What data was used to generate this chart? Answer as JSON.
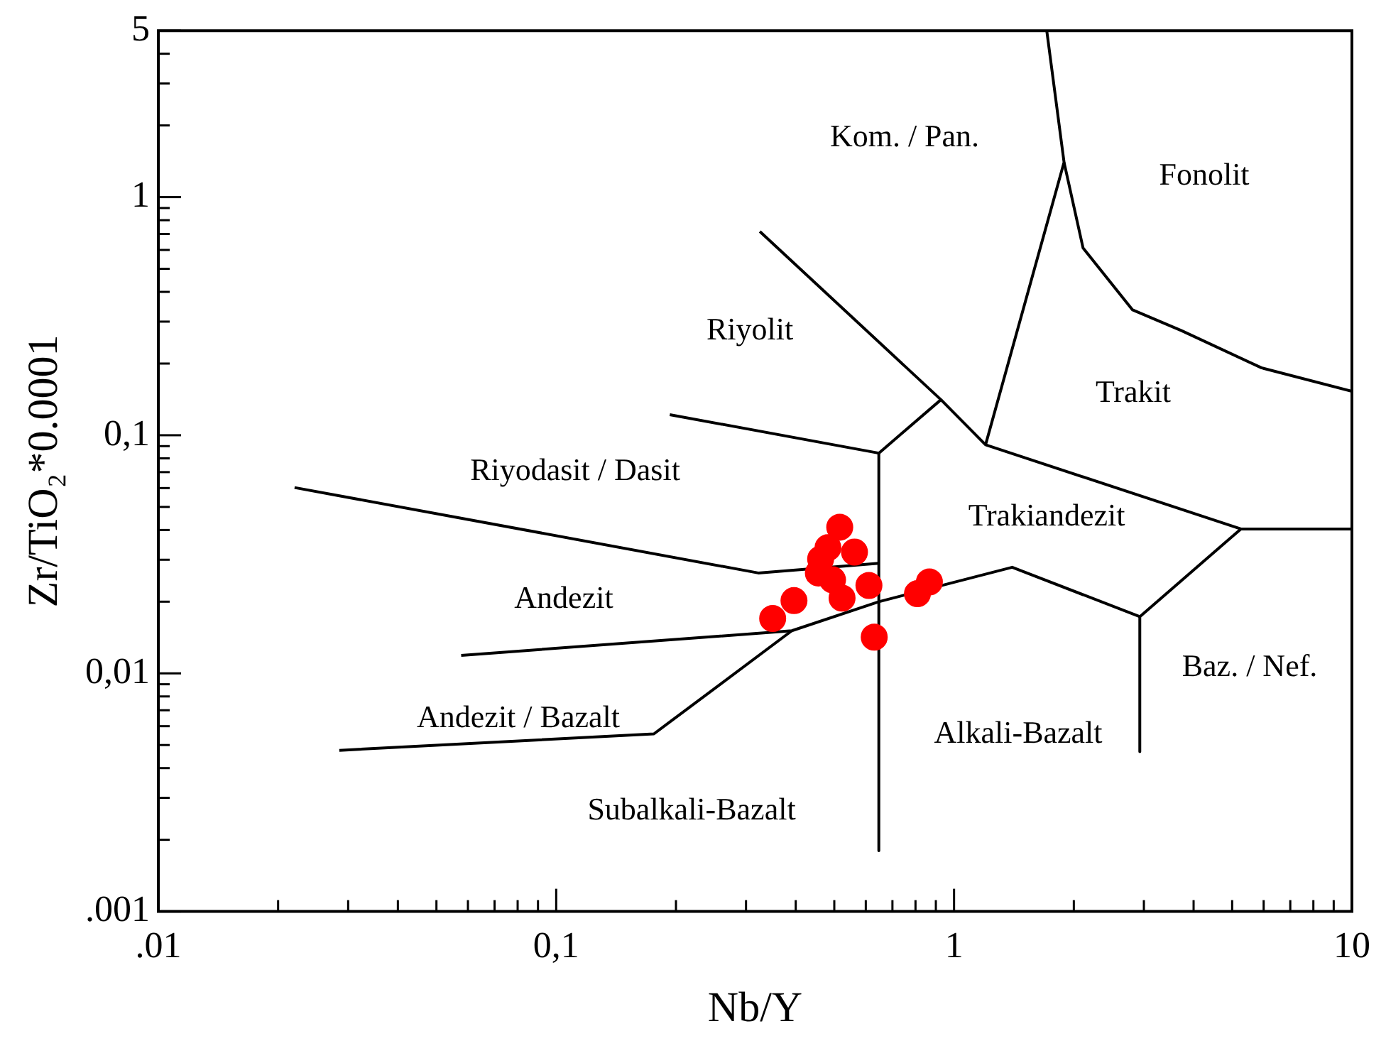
{
  "chart_data": {
    "type": "scatter",
    "xlabel": "Nb/Y",
    "ylabel": "Zr/TiO₂*0.0001",
    "log": "xy",
    "grid": false,
    "legend": false,
    "xlim": [
      0.01,
      10
    ],
    "ylim": [
      0.001,
      5
    ],
    "xticks": [
      {
        "value": 0.01,
        "label": ".01"
      },
      {
        "value": 0.02,
        "label": null
      },
      {
        "value": 0.03,
        "label": null
      },
      {
        "value": 0.04,
        "label": null
      },
      {
        "value": 0.05,
        "label": null
      },
      {
        "value": 0.06,
        "label": null
      },
      {
        "value": 0.07,
        "label": null
      },
      {
        "value": 0.08,
        "label": null
      },
      {
        "value": 0.09,
        "label": null
      },
      {
        "value": 0.1,
        "label": "0,1"
      },
      {
        "value": 0.2,
        "label": null
      },
      {
        "value": 0.3,
        "label": null
      },
      {
        "value": 0.4,
        "label": null
      },
      {
        "value": 0.5,
        "label": null
      },
      {
        "value": 0.6,
        "label": null
      },
      {
        "value": 0.7,
        "label": null
      },
      {
        "value": 0.8,
        "label": null
      },
      {
        "value": 0.9,
        "label": null
      },
      1,
      {
        "value": 2,
        "label": null
      },
      {
        "value": 3,
        "label": null
      },
      {
        "value": 4,
        "label": null
      },
      {
        "value": 5,
        "label": null
      },
      {
        "value": 6,
        "label": null
      },
      {
        "value": 7,
        "label": null
      },
      {
        "value": 8,
        "label": null
      },
      {
        "value": 9,
        "label": null
      },
      10
    ],
    "yticks": [
      {
        "value": 0.001,
        "label": ".001"
      },
      {
        "value": 0.002,
        "label": null
      },
      {
        "value": 0.003,
        "label": null
      },
      {
        "value": 0.004,
        "label": null
      },
      {
        "value": 0.005,
        "label": null
      },
      {
        "value": 0.006,
        "label": null
      },
      {
        "value": 0.007,
        "label": null
      },
      {
        "value": 0.008,
        "label": null
      },
      {
        "value": 0.009,
        "label": null
      },
      {
        "value": 0.01,
        "label": "0,01"
      },
      {
        "value": 0.02,
        "label": null
      },
      {
        "value": 0.03,
        "label": null
      },
      {
        "value": 0.04,
        "label": null
      },
      {
        "value": 0.05,
        "label": null
      },
      {
        "value": 0.06,
        "label": null
      },
      {
        "value": 0.07,
        "label": null
      },
      {
        "value": 0.08,
        "label": null
      },
      {
        "value": 0.09,
        "label": null
      },
      {
        "value": 0.1,
        "label": "0,1"
      },
      {
        "value": 0.2,
        "label": null
      },
      {
        "value": 0.3,
        "label": null
      },
      {
        "value": 0.4,
        "label": null
      },
      {
        "value": 0.5,
        "label": null
      },
      {
        "value": 0.6,
        "label": null
      },
      {
        "value": 0.7,
        "label": null
      },
      {
        "value": 0.8,
        "label": null
      },
      {
        "value": 0.9,
        "label": null
      },
      1,
      {
        "value": 2,
        "label": null
      },
      {
        "value": 3,
        "label": null
      },
      {
        "value": 4,
        "label": null
      },
      5
    ],
    "series": [
      {
        "color": "#ff0000",
        "marker": "circle",
        "x": [
          0.516,
          0.482,
          0.562,
          0.462,
          0.456,
          0.495,
          0.523,
          0.611,
          0.396,
          0.35,
          0.63,
          0.867,
          0.809
        ],
        "values": [
          0.0411,
          0.0337,
          0.0323,
          0.0302,
          0.0264,
          0.0247,
          0.0207,
          0.0234,
          0.0202,
          0.017,
          0.0142,
          0.0242,
          0.0216
        ]
      },
      {
        "type": "line",
        "color": "#000000",
        "marker": "none",
        "x": [
          0.022,
          0.322,
          0.647
        ],
        "values": [
          0.0603,
          0.0264,
          0.029
        ]
      },
      {
        "type": "line",
        "color": "#000000",
        "marker": "none",
        "x": [
          0.193,
          0.647,
          0.927
        ],
        "values": [
          0.122,
          0.0841,
          0.141
        ]
      },
      {
        "type": "line",
        "color": "#000000",
        "marker": "none",
        "x": [
          0.647,
          0.647
        ],
        "values": [
          0.0841,
          0.0018
        ]
      },
      {
        "type": "line",
        "color": "#000000",
        "marker": "none",
        "x": [
          0.325,
          0.927,
          1.2,
          5.26,
          10
        ],
        "values": [
          0.717,
          0.141,
          0.0912,
          0.0404,
          0.0404
        ]
      },
      {
        "type": "line",
        "color": "#000000",
        "marker": "none",
        "x": [
          1.2,
          1.89,
          1.71
        ],
        "values": [
          0.0912,
          1.4,
          5
        ]
      },
      {
        "type": "line",
        "color": "#000000",
        "marker": "none",
        "x": [
          1.89,
          2.11,
          2.81,
          3.73,
          5.92,
          10
        ],
        "values": [
          1.4,
          0.611,
          0.336,
          0.275,
          0.192,
          0.153
        ]
      },
      {
        "type": "line",
        "color": "#000000",
        "marker": "none",
        "x": [
          5.26,
          2.93,
          2.93
        ],
        "values": [
          0.0404,
          0.0173,
          0.00469
        ]
      },
      {
        "type": "line",
        "color": "#000000",
        "marker": "none",
        "x": [
          0.0577,
          0.391,
          0.647,
          1.4,
          2.93
        ],
        "values": [
          0.0119,
          0.0151,
          0.02,
          0.0279,
          0.0173
        ]
      },
      {
        "type": "line",
        "color": "#000000",
        "marker": "none",
        "x": [
          0.0285,
          0.176,
          0.391
        ],
        "values": [
          0.00475,
          0.00557,
          0.0151
        ]
      }
    ],
    "annotations": [
      "Kom. / Pan.",
      "Fonolit",
      "Riyolit",
      "Trakit",
      "Riyodasit / Dasit",
      "Trakiandezit",
      "Andezit",
      "Baz. / Nef.",
      "Andezit / Bazalt",
      "Alkali-Bazalt",
      "Subalkali-Bazalt"
    ]
  }
}
